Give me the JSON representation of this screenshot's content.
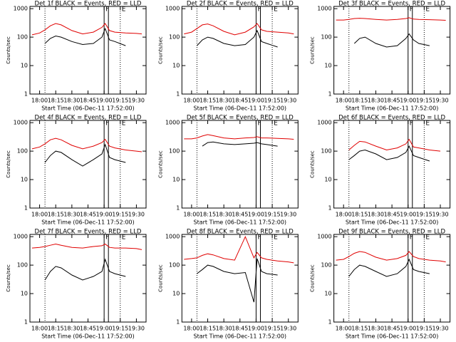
{
  "chart_data": [
    {
      "type": "line",
      "title": "Det 1f BLACK = Events, RED = LLD",
      "xlabel": "Start Time (06-Dec-11 17:52:00)",
      "ylabel": "Counts/sec",
      "log_y": true,
      "grid": false,
      "x": [
        "17:53",
        "18:00",
        "18:05",
        "18:10",
        "18:15",
        "18:20",
        "18:30",
        "18:40",
        "18:50",
        "18:58",
        "19:01",
        "19:05",
        "19:10",
        "19:20",
        "19:30",
        "19:35"
      ],
      "series": [
        {
          "name": "RED = LLD",
          "color": "#e00000",
          "values": [
            120,
            140,
            180,
            250,
            300,
            270,
            170,
            130,
            150,
            220,
            300,
            170,
            150,
            140,
            135,
            130
          ]
        },
        {
          "name": "BLACK = Events",
          "color": "#000000",
          "values": [
            null,
            null,
            60,
            90,
            110,
            100,
            70,
            55,
            60,
            100,
            200,
            80,
            70,
            50,
            null,
            null
          ]
        }
      ],
      "vlines": [
        {
          "x": "18:05",
          "style": "dotted"
        },
        {
          "x": "19:00",
          "style": "solid",
          "label": "F"
        },
        {
          "x": "19:04",
          "style": "solid"
        },
        {
          "x": "19:15",
          "style": "dotted",
          "label": "E"
        }
      ],
      "xlim": [
        "17:51",
        "19:39"
      ],
      "xticks": [
        "18:00",
        "18:15",
        "18:30",
        "18:45",
        "19:00",
        "19:15",
        "19:30"
      ],
      "ylim": [
        1,
        1200
      ],
      "yticks": [
        1,
        10,
        100,
        1000
      ]
    },
    {
      "type": "line",
      "title": "Det 2f BLACK = Events, RED = LLD",
      "xlabel": "Start Time (06-Dec-11 17:52:00)",
      "ylabel": "Counts/sec",
      "log_y": true,
      "grid": false,
      "x": [
        "17:53",
        "18:00",
        "18:05",
        "18:10",
        "18:15",
        "18:20",
        "18:30",
        "18:40",
        "18:50",
        "18:58",
        "19:01",
        "19:05",
        "19:10",
        "19:20",
        "19:30",
        "19:35"
      ],
      "series": [
        {
          "name": "RED = LLD",
          "color": "#e00000",
          "values": [
            130,
            150,
            200,
            270,
            290,
            250,
            160,
            120,
            150,
            230,
            300,
            180,
            160,
            150,
            140,
            130
          ]
        },
        {
          "name": "BLACK = Events",
          "color": "#000000",
          "values": [
            null,
            null,
            50,
            80,
            100,
            90,
            60,
            50,
            55,
            100,
            170,
            70,
            60,
            45,
            null,
            null
          ]
        }
      ],
      "vlines": [
        {
          "x": "18:05",
          "style": "dotted"
        },
        {
          "x": "19:00",
          "style": "solid",
          "label": "F"
        },
        {
          "x": "19:04",
          "style": "solid"
        },
        {
          "x": "19:15",
          "style": "dotted",
          "label": "E"
        }
      ],
      "xlim": [
        "17:51",
        "19:39"
      ],
      "xticks": [
        "18:00",
        "18:15",
        "18:30",
        "18:45",
        "19:00",
        "19:15",
        "19:30"
      ],
      "ylim": [
        1,
        1200
      ],
      "yticks": [
        1,
        10,
        100,
        1000
      ]
    },
    {
      "type": "line",
      "title": "Det 3f BLACK = Events, RED = LLD",
      "xlabel": "Start Time (06-Dec-11 17:52:00)",
      "ylabel": "Counts/sec",
      "log_y": true,
      "grid": false,
      "x": [
        "17:53",
        "18:00",
        "18:05",
        "18:10",
        "18:15",
        "18:20",
        "18:30",
        "18:40",
        "18:50",
        "18:58",
        "19:01",
        "19:05",
        "19:10",
        "19:20",
        "19:30",
        "19:35"
      ],
      "series": [
        {
          "name": "RED = LLD",
          "color": "#e00000",
          "values": [
            400,
            400,
            420,
            450,
            460,
            450,
            420,
            400,
            420,
            450,
            480,
            430,
            420,
            410,
            400,
            390
          ]
        },
        {
          "name": "BLACK = Events",
          "color": "#000000",
          "values": [
            null,
            null,
            null,
            60,
            90,
            100,
            60,
            45,
            50,
            90,
            130,
            80,
            60,
            50,
            null,
            null
          ]
        }
      ],
      "vlines": [
        {
          "x": "18:05",
          "style": "dotted"
        },
        {
          "x": "19:00",
          "style": "solid",
          "label": "F"
        },
        {
          "x": "19:04",
          "style": "solid"
        },
        {
          "x": "19:15",
          "style": "dotted",
          "label": "E"
        }
      ],
      "xlim": [
        "17:51",
        "19:39"
      ],
      "xticks": [
        "18:00",
        "18:15",
        "18:30",
        "18:45",
        "19:00",
        "19:15",
        "19:30"
      ],
      "ylim": [
        1,
        1200
      ],
      "yticks": [
        1,
        10,
        100,
        1000
      ]
    },
    {
      "type": "line",
      "title": "Det 4f BLACK = Events, RED = LLD",
      "xlabel": "Start Time (06-Dec-11 17:52:00)",
      "ylabel": "Counts/sec",
      "log_y": true,
      "grid": false,
      "x": [
        "17:53",
        "18:00",
        "18:05",
        "18:10",
        "18:15",
        "18:20",
        "18:30",
        "18:40",
        "18:50",
        "18:58",
        "19:01",
        "19:05",
        "19:10",
        "19:20",
        "19:30",
        "19:35"
      ],
      "series": [
        {
          "name": "RED = LLD",
          "color": "#e00000",
          "values": [
            120,
            140,
            180,
            250,
            280,
            250,
            160,
            120,
            150,
            200,
            260,
            150,
            130,
            110,
            100,
            95
          ]
        },
        {
          "name": "BLACK = Events",
          "color": "#000000",
          "values": [
            null,
            null,
            40,
            70,
            100,
            90,
            50,
            30,
            50,
            80,
            170,
            60,
            50,
            40,
            null,
            null
          ]
        }
      ],
      "vlines": [
        {
          "x": "18:05",
          "style": "dotted"
        },
        {
          "x": "19:00",
          "style": "solid",
          "label": "F"
        },
        {
          "x": "19:04",
          "style": "solid"
        },
        {
          "x": "19:15",
          "style": "dotted",
          "label": "E"
        }
      ],
      "xlim": [
        "17:51",
        "19:39"
      ],
      "xticks": [
        "18:00",
        "18:15",
        "18:30",
        "18:45",
        "19:00",
        "19:15",
        "19:30"
      ],
      "ylim": [
        1,
        1200
      ],
      "yticks": [
        1,
        10,
        100,
        1000
      ]
    },
    {
      "type": "line",
      "title": "Det 5f BLACK = Events, RED = LLD",
      "xlabel": "Start Time (06-Dec-11 17:52:00)",
      "ylabel": "Counts/sec",
      "log_y": true,
      "grid": false,
      "x": [
        "17:53",
        "18:00",
        "18:05",
        "18:10",
        "18:15",
        "18:20",
        "18:30",
        "18:40",
        "18:50",
        "18:58",
        "19:01",
        "19:05",
        "19:10",
        "19:20",
        "19:30",
        "19:35"
      ],
      "series": [
        {
          "name": "RED = LLD",
          "color": "#e00000",
          "values": [
            270,
            270,
            290,
            340,
            380,
            350,
            290,
            270,
            290,
            300,
            320,
            290,
            290,
            280,
            270,
            260
          ]
        },
        {
          "name": "BLACK = Events",
          "color": "#000000",
          "values": [
            null,
            null,
            null,
            150,
            200,
            210,
            180,
            170,
            180,
            190,
            200,
            180,
            170,
            150,
            null,
            null
          ]
        }
      ],
      "vlines": [
        {
          "x": "18:05",
          "style": "dotted"
        },
        {
          "x": "19:00",
          "style": "solid",
          "label": "F"
        },
        {
          "x": "19:04",
          "style": "solid"
        },
        {
          "x": "19:15",
          "style": "dotted",
          "label": "E"
        }
      ],
      "xlim": [
        "17:51",
        "19:39"
      ],
      "xticks": [
        "18:00",
        "18:15",
        "18:30",
        "18:45",
        "19:00",
        "19:15",
        "19:30"
      ],
      "ylim": [
        1,
        1200
      ],
      "yticks": [
        1,
        10,
        100,
        1000
      ]
    },
    {
      "type": "line",
      "title": "Det 6f BLACK = Events, RED = LLD",
      "xlabel": "Start Time (06-Dec-11 17:52:00)",
      "ylabel": "Counts/sec",
      "log_y": true,
      "grid": false,
      "x": [
        "17:53",
        "18:00",
        "18:05",
        "18:10",
        "18:15",
        "18:20",
        "18:30",
        "18:40",
        "18:50",
        "18:58",
        "19:01",
        "19:05",
        "19:10",
        "19:20",
        "19:30",
        "19:35"
      ],
      "series": [
        {
          "name": "RED = LLD",
          "color": "#e00000",
          "values": [
            null,
            null,
            110,
            160,
            220,
            210,
            150,
            110,
            130,
            180,
            260,
            140,
            130,
            110,
            100,
            null
          ]
        },
        {
          "name": "BLACK = Events",
          "color": "#000000",
          "values": [
            null,
            null,
            50,
            70,
            100,
            110,
            80,
            50,
            60,
            90,
            150,
            70,
            60,
            45,
            null,
            null
          ]
        }
      ],
      "vlines": [
        {
          "x": "18:05",
          "style": "dotted"
        },
        {
          "x": "19:00",
          "style": "solid",
          "label": "F"
        },
        {
          "x": "19:04",
          "style": "solid"
        },
        {
          "x": "19:15",
          "style": "dotted",
          "label": "E"
        }
      ],
      "xlim": [
        "17:51",
        "19:39"
      ],
      "xticks": [
        "18:00",
        "18:15",
        "18:30",
        "18:45",
        "19:00",
        "19:15",
        "19:30"
      ],
      "ylim": [
        1,
        1200
      ],
      "yticks": [
        1,
        10,
        100,
        1000
      ]
    },
    {
      "type": "line",
      "title": "Det 7f BLACK = Events, RED = LLD",
      "xlabel": "Start Time (06-Dec-11 17:52:00)",
      "ylabel": "Counts/sec",
      "log_y": true,
      "grid": false,
      "x": [
        "17:53",
        "18:00",
        "18:05",
        "18:10",
        "18:15",
        "18:20",
        "18:30",
        "18:40",
        "18:50",
        "18:58",
        "19:01",
        "19:05",
        "19:10",
        "19:20",
        "19:30",
        "19:35"
      ],
      "series": [
        {
          "name": "RED = LLD",
          "color": "#e00000",
          "values": [
            400,
            420,
            450,
            500,
            550,
            500,
            420,
            400,
            450,
            480,
            550,
            420,
            400,
            400,
            380,
            350
          ]
        },
        {
          "name": "BLACK = Events",
          "color": "#000000",
          "values": [
            null,
            null,
            30,
            60,
            90,
            80,
            45,
            30,
            40,
            60,
            160,
            60,
            50,
            40,
            null,
            null
          ]
        }
      ],
      "vlines": [
        {
          "x": "18:05",
          "style": "dotted"
        },
        {
          "x": "19:00",
          "style": "solid",
          "label": "F"
        },
        {
          "x": "19:04",
          "style": "solid"
        },
        {
          "x": "19:15",
          "style": "dotted",
          "label": "E"
        }
      ],
      "xlim": [
        "17:51",
        "19:39"
      ],
      "xticks": [
        "18:00",
        "18:15",
        "18:30",
        "18:45",
        "19:00",
        "19:15",
        "19:30"
      ],
      "ylim": [
        1,
        1200
      ],
      "yticks": [
        1,
        10,
        100,
        1000
      ]
    },
    {
      "type": "line",
      "title": "Det 8f BLACK = Events, RED = LLD",
      "xlabel": "Start Time (06-Dec-11 17:52:00)",
      "ylabel": "Counts/sec",
      "log_y": true,
      "grid": false,
      "x": [
        "17:53",
        "18:00",
        "18:05",
        "18:10",
        "18:15",
        "18:20",
        "18:30",
        "18:40",
        "18:50",
        "18:58",
        "19:01",
        "19:05",
        "19:10",
        "19:20",
        "19:30",
        "19:35"
      ],
      "series": [
        {
          "name": "RED = LLD",
          "color": "#e00000",
          "values": [
            160,
            170,
            180,
            220,
            250,
            230,
            170,
            150,
            1000,
            180,
            280,
            180,
            160,
            140,
            130,
            120
          ]
        },
        {
          "name": "BLACK = Events",
          "color": "#000000",
          "values": [
            null,
            null,
            50,
            70,
            100,
            90,
            60,
            50,
            55,
            5,
            170,
            60,
            50,
            45,
            null,
            null
          ]
        }
      ],
      "vlines": [
        {
          "x": "18:05",
          "style": "dotted"
        },
        {
          "x": "19:00",
          "style": "solid",
          "label": "F"
        },
        {
          "x": "19:04",
          "style": "solid"
        },
        {
          "x": "19:15",
          "style": "dotted",
          "label": "E"
        }
      ],
      "xlim": [
        "17:51",
        "19:39"
      ],
      "xticks": [
        "18:00",
        "18:15",
        "18:30",
        "18:45",
        "19:00",
        "19:15",
        "19:30"
      ],
      "ylim": [
        1,
        1200
      ],
      "yticks": [
        1,
        10,
        100,
        1000
      ]
    },
    {
      "type": "line",
      "title": "Det 9f BLACK = Events, RED = LLD",
      "xlabel": "Start Time (06-Dec-11 17:52:00)",
      "ylabel": "Counts/sec",
      "log_y": true,
      "grid": false,
      "x": [
        "17:53",
        "18:00",
        "18:05",
        "18:10",
        "18:15",
        "18:20",
        "18:30",
        "18:40",
        "18:50",
        "18:58",
        "19:01",
        "19:05",
        "19:10",
        "19:20",
        "19:30",
        "19:35"
      ],
      "series": [
        {
          "name": "RED = LLD",
          "color": "#e00000",
          "values": [
            150,
            160,
            200,
            260,
            300,
            280,
            190,
            150,
            170,
            220,
            300,
            200,
            170,
            150,
            140,
            130
          ]
        },
        {
          "name": "BLACK = Events",
          "color": "#000000",
          "values": [
            null,
            null,
            40,
            70,
            100,
            90,
            60,
            40,
            50,
            90,
            160,
            70,
            60,
            50,
            null,
            null
          ]
        }
      ],
      "vlines": [
        {
          "x": "18:05",
          "style": "dotted"
        },
        {
          "x": "19:00",
          "style": "solid",
          "label": "F"
        },
        {
          "x": "19:04",
          "style": "solid"
        },
        {
          "x": "19:15",
          "style": "dotted",
          "label": "E"
        }
      ],
      "xlim": [
        "17:51",
        "19:39"
      ],
      "xticks": [
        "18:00",
        "18:15",
        "18:30",
        "18:45",
        "19:00",
        "19:15",
        "19:30"
      ],
      "ylim": [
        1,
        1200
      ],
      "yticks": [
        1,
        10,
        100,
        1000
      ]
    }
  ]
}
